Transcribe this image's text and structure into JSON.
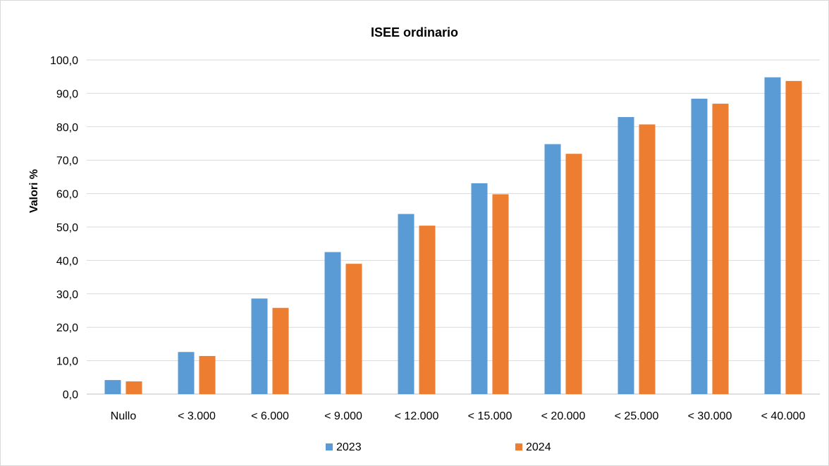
{
  "chart_data": {
    "type": "bar",
    "title": "ISEE ordinario",
    "xlabel": "",
    "ylabel": "Valori %",
    "ylim": [
      0,
      100
    ],
    "yticks": [
      "0,0",
      "10,0",
      "20,0",
      "30,0",
      "40,0",
      "50,0",
      "60,0",
      "70,0",
      "80,0",
      "90,0",
      "100,0"
    ],
    "ytick_values": [
      0,
      10,
      20,
      30,
      40,
      50,
      60,
      70,
      80,
      90,
      100
    ],
    "grid": true,
    "legend_position": "bottom",
    "categories": [
      "Nullo",
      "< 3.000",
      "< 6.000",
      "< 9.000",
      "< 12.000",
      "< 15.000",
      "< 20.000",
      "< 25.000",
      "< 30.000",
      "< 40.000"
    ],
    "series": [
      {
        "name": "2023",
        "color": "#5b9bd5",
        "values": [
          4.2,
          12.6,
          28.6,
          42.5,
          53.9,
          63.1,
          74.8,
          82.9,
          88.4,
          94.8
        ]
      },
      {
        "name": "2024",
        "color": "#ed7d31",
        "values": [
          3.8,
          11.4,
          25.8,
          39.0,
          50.4,
          59.8,
          71.9,
          80.7,
          86.9,
          93.7
        ]
      }
    ]
  }
}
